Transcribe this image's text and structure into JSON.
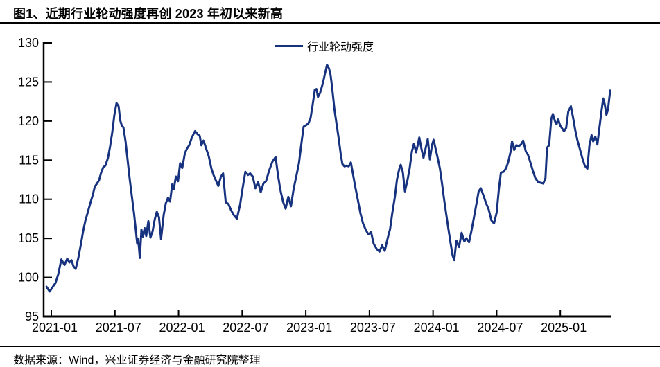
{
  "title": "图1、近期行业轮动强度再创 2023 年初以来新高",
  "source_note": "数据来源：Wind，兴业证券经济与金融研究院整理",
  "legend": {
    "label": "行业轮动强度"
  },
  "colors": {
    "line": "#17327F",
    "axis": "#000000",
    "text": "#000000"
  },
  "chart_data": {
    "type": "line",
    "title": "行业轮动强度",
    "xlabel": "",
    "ylabel": "",
    "x_unit": "months since 2021-01",
    "xlim": [
      -0.72,
      52.63
    ],
    "ylim": [
      95,
      130
    ],
    "grid": false,
    "legend_position": "top-center",
    "y_ticks": [
      95,
      100,
      105,
      110,
      115,
      120,
      125,
      130
    ],
    "x_tick_positions": [
      0,
      6,
      12,
      18,
      24,
      30,
      36,
      42,
      48
    ],
    "x_tick_labels": [
      "2021-01",
      "2021-07",
      "2022-01",
      "2022-07",
      "2023-01",
      "2023-07",
      "2024-01",
      "2024-07",
      "2025-01"
    ],
    "series": [
      {
        "name": "行业轮动强度",
        "color": "#17327F",
        "points": [
          [
            -0.45,
            98.8
          ],
          [
            -0.15,
            98.2
          ],
          [
            0.1,
            98.7
          ],
          [
            0.4,
            99.3
          ],
          [
            0.65,
            100.4
          ],
          [
            0.95,
            102.3
          ],
          [
            1.25,
            101.6
          ],
          [
            1.5,
            102.4
          ],
          [
            1.7,
            101.9
          ],
          [
            1.9,
            102.2
          ],
          [
            2.1,
            101.4
          ],
          [
            2.3,
            101.1
          ],
          [
            2.55,
            102.5
          ],
          [
            2.8,
            104.3
          ],
          [
            3.0,
            105.9
          ],
          [
            3.2,
            107.2
          ],
          [
            3.45,
            108.4
          ],
          [
            3.7,
            109.6
          ],
          [
            3.9,
            110.5
          ],
          [
            4.1,
            111.6
          ],
          [
            4.3,
            112.0
          ],
          [
            4.5,
            112.4
          ],
          [
            4.7,
            113.4
          ],
          [
            4.9,
            114.1
          ],
          [
            5.1,
            114.3
          ],
          [
            5.35,
            115.3
          ],
          [
            5.55,
            116.8
          ],
          [
            5.75,
            118.6
          ],
          [
            5.95,
            120.8
          ],
          [
            6.15,
            122.3
          ],
          [
            6.35,
            121.9
          ],
          [
            6.5,
            120.1
          ],
          [
            6.65,
            119.4
          ],
          [
            6.8,
            119.2
          ],
          [
            7.0,
            117.4
          ],
          [
            7.2,
            115.0
          ],
          [
            7.4,
            112.5
          ],
          [
            7.6,
            110.3
          ],
          [
            7.8,
            108.2
          ],
          [
            7.95,
            106.3
          ],
          [
            8.1,
            104.3
          ],
          [
            8.2,
            104.9
          ],
          [
            8.35,
            102.5
          ],
          [
            8.5,
            106.1
          ],
          [
            8.65,
            105.2
          ],
          [
            8.8,
            106.3
          ],
          [
            8.95,
            105.3
          ],
          [
            9.15,
            107.2
          ],
          [
            9.35,
            105.1
          ],
          [
            9.55,
            105.9
          ],
          [
            9.75,
            107.4
          ],
          [
            9.95,
            108.4
          ],
          [
            10.15,
            107.7
          ],
          [
            10.35,
            104.9
          ],
          [
            10.6,
            108.0
          ],
          [
            10.8,
            109.5
          ],
          [
            11.0,
            110.2
          ],
          [
            11.2,
            109.7
          ],
          [
            11.4,
            111.9
          ],
          [
            11.55,
            111.3
          ],
          [
            11.75,
            112.9
          ],
          [
            11.95,
            112.3
          ],
          [
            12.15,
            114.6
          ],
          [
            12.35,
            114.0
          ],
          [
            12.6,
            115.9
          ],
          [
            12.8,
            116.5
          ],
          [
            13.0,
            116.9
          ],
          [
            13.25,
            117.9
          ],
          [
            13.55,
            118.7
          ],
          [
            13.8,
            118.3
          ],
          [
            14.0,
            118.1
          ],
          [
            14.15,
            116.9
          ],
          [
            14.35,
            117.5
          ],
          [
            14.6,
            116.5
          ],
          [
            14.85,
            115.5
          ],
          [
            15.1,
            113.9
          ],
          [
            15.3,
            113.1
          ],
          [
            15.55,
            112.3
          ],
          [
            15.75,
            111.7
          ],
          [
            16.0,
            112.9
          ],
          [
            16.2,
            113.3
          ],
          [
            16.45,
            109.6
          ],
          [
            16.7,
            109.4
          ],
          [
            16.95,
            108.6
          ],
          [
            17.2,
            108.0
          ],
          [
            17.5,
            107.5
          ],
          [
            17.8,
            109.3
          ],
          [
            18.05,
            111.5
          ],
          [
            18.3,
            113.5
          ],
          [
            18.55,
            113.1
          ],
          [
            18.75,
            113.3
          ],
          [
            19.0,
            112.9
          ],
          [
            19.25,
            111.4
          ],
          [
            19.5,
            112.2
          ],
          [
            19.75,
            110.9
          ],
          [
            20.0,
            112.0
          ],
          [
            20.25,
            112.3
          ],
          [
            20.55,
            113.7
          ],
          [
            20.85,
            114.8
          ],
          [
            21.15,
            115.4
          ],
          [
            21.4,
            112.9
          ],
          [
            21.6,
            111.2
          ],
          [
            21.85,
            109.7
          ],
          [
            22.1,
            108.8
          ],
          [
            22.35,
            110.3
          ],
          [
            22.6,
            109.1
          ],
          [
            22.85,
            111.3
          ],
          [
            23.1,
            112.9
          ],
          [
            23.35,
            114.6
          ],
          [
            23.6,
            117.3
          ],
          [
            23.8,
            119.3
          ],
          [
            24.05,
            119.5
          ],
          [
            24.25,
            119.7
          ],
          [
            24.45,
            120.4
          ],
          [
            24.65,
            122.1
          ],
          [
            24.85,
            124.0
          ],
          [
            25.0,
            124.1
          ],
          [
            25.15,
            123.1
          ],
          [
            25.35,
            123.6
          ],
          [
            25.6,
            124.8
          ],
          [
            25.8,
            126.0
          ],
          [
            26.0,
            127.2
          ],
          [
            26.2,
            126.7
          ],
          [
            26.35,
            125.8
          ],
          [
            26.5,
            124.1
          ],
          [
            26.7,
            121.5
          ],
          [
            26.9,
            119.6
          ],
          [
            27.1,
            117.8
          ],
          [
            27.3,
            115.7
          ],
          [
            27.45,
            114.5
          ],
          [
            27.65,
            114.2
          ],
          [
            27.85,
            114.3
          ],
          [
            28.05,
            114.2
          ],
          [
            28.25,
            114.7
          ],
          [
            28.45,
            113.2
          ],
          [
            28.65,
            111.7
          ],
          [
            28.9,
            110.0
          ],
          [
            29.15,
            108.2
          ],
          [
            29.4,
            106.9
          ],
          [
            29.65,
            106.1
          ],
          [
            29.9,
            105.5
          ],
          [
            30.15,
            105.8
          ],
          [
            30.4,
            104.3
          ],
          [
            30.7,
            103.6
          ],
          [
            30.95,
            103.3
          ],
          [
            31.2,
            104.1
          ],
          [
            31.45,
            103.4
          ],
          [
            31.7,
            104.9
          ],
          [
            31.95,
            106.2
          ],
          [
            32.15,
            108.2
          ],
          [
            32.4,
            110.3
          ],
          [
            32.6,
            112.5
          ],
          [
            32.8,
            113.8
          ],
          [
            32.95,
            114.4
          ],
          [
            33.15,
            113.5
          ],
          [
            33.35,
            111.0
          ],
          [
            33.6,
            112.5
          ],
          [
            33.8,
            114.0
          ],
          [
            34.0,
            116.1
          ],
          [
            34.2,
            117.1
          ],
          [
            34.4,
            116.0
          ],
          [
            34.55,
            116.9
          ],
          [
            34.7,
            117.9
          ],
          [
            34.9,
            116.5
          ],
          [
            35.1,
            115.3
          ],
          [
            35.3,
            116.5
          ],
          [
            35.5,
            117.7
          ],
          [
            35.7,
            115.1
          ],
          [
            35.9,
            116.9
          ],
          [
            36.05,
            117.6
          ],
          [
            36.25,
            116.4
          ],
          [
            36.45,
            115.2
          ],
          [
            36.65,
            113.9
          ],
          [
            36.85,
            112.0
          ],
          [
            37.05,
            109.9
          ],
          [
            37.25,
            108.0
          ],
          [
            37.45,
            106.2
          ],
          [
            37.65,
            104.4
          ],
          [
            37.85,
            102.8
          ],
          [
            38.0,
            102.2
          ],
          [
            38.2,
            104.7
          ],
          [
            38.45,
            103.9
          ],
          [
            38.7,
            105.7
          ],
          [
            38.95,
            104.6
          ],
          [
            39.15,
            105.0
          ],
          [
            39.4,
            104.5
          ],
          [
            39.6,
            105.8
          ],
          [
            39.85,
            107.6
          ],
          [
            40.1,
            109.5
          ],
          [
            40.3,
            111.0
          ],
          [
            40.5,
            111.4
          ],
          [
            40.75,
            110.5
          ],
          [
            41.0,
            109.5
          ],
          [
            41.25,
            108.7
          ],
          [
            41.5,
            107.3
          ],
          [
            41.75,
            106.9
          ],
          [
            42.0,
            108.3
          ],
          [
            42.2,
            111.2
          ],
          [
            42.4,
            113.4
          ],
          [
            42.65,
            113.5
          ],
          [
            42.9,
            114.0
          ],
          [
            43.1,
            114.8
          ],
          [
            43.3,
            116.0
          ],
          [
            43.45,
            117.4
          ],
          [
            43.65,
            116.3
          ],
          [
            43.85,
            116.9
          ],
          [
            44.1,
            116.8
          ],
          [
            44.3,
            117.0
          ],
          [
            44.5,
            117.5
          ],
          [
            44.75,
            116.1
          ],
          [
            44.95,
            115.7
          ],
          [
            45.2,
            114.6
          ],
          [
            45.4,
            113.7
          ],
          [
            45.65,
            112.7
          ],
          [
            45.9,
            112.2
          ],
          [
            46.15,
            112.1
          ],
          [
            46.4,
            112.0
          ],
          [
            46.6,
            112.7
          ],
          [
            46.75,
            116.6
          ],
          [
            46.95,
            116.9
          ],
          [
            47.15,
            120.3
          ],
          [
            47.3,
            120.9
          ],
          [
            47.5,
            120.0
          ],
          [
            47.65,
            119.6
          ],
          [
            47.8,
            120.2
          ],
          [
            48.0,
            119.4
          ],
          [
            48.2,
            119.0
          ],
          [
            48.35,
            118.7
          ],
          [
            48.55,
            119.1
          ],
          [
            48.75,
            121.2
          ],
          [
            49.0,
            121.9
          ],
          [
            49.2,
            120.5
          ],
          [
            49.4,
            118.9
          ],
          [
            49.6,
            117.6
          ],
          [
            49.85,
            116.4
          ],
          [
            50.05,
            115.4
          ],
          [
            50.3,
            114.3
          ],
          [
            50.55,
            113.9
          ],
          [
            50.75,
            116.9
          ],
          [
            50.95,
            118.2
          ],
          [
            51.1,
            117.4
          ],
          [
            51.3,
            118.0
          ],
          [
            51.5,
            117.0
          ],
          [
            51.7,
            119.3
          ],
          [
            51.9,
            121.4
          ],
          [
            52.05,
            122.9
          ],
          [
            52.2,
            122.1
          ],
          [
            52.35,
            120.8
          ],
          [
            52.5,
            121.5
          ],
          [
            52.7,
            123.9
          ]
        ]
      }
    ]
  }
}
